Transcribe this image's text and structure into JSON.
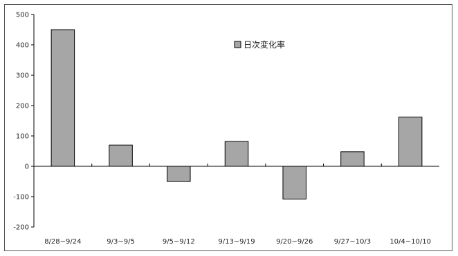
{
  "chart_data": {
    "type": "bar",
    "title": "",
    "xlabel": "",
    "ylabel": "",
    "categories": [
      "8/28~9/24",
      "9/3~9/5",
      "9/5~9/12",
      "9/13~9/19",
      "9/20~9/26",
      "9/27~10/3",
      "10/4~10/10"
    ],
    "series": [
      {
        "name": "日次変化率",
        "values": [
          450,
          70,
          -50,
          82,
          -108,
          48,
          162
        ]
      }
    ],
    "ylim": [
      -200,
      500
    ],
    "yticks": [
      -200,
      -100,
      0,
      100,
      200,
      300,
      400,
      500
    ],
    "grid": false,
    "legend_position": "top-center",
    "colors": {
      "bar": "#a6a6a6",
      "bar_edge": "#000000",
      "axis": "#000000"
    }
  }
}
